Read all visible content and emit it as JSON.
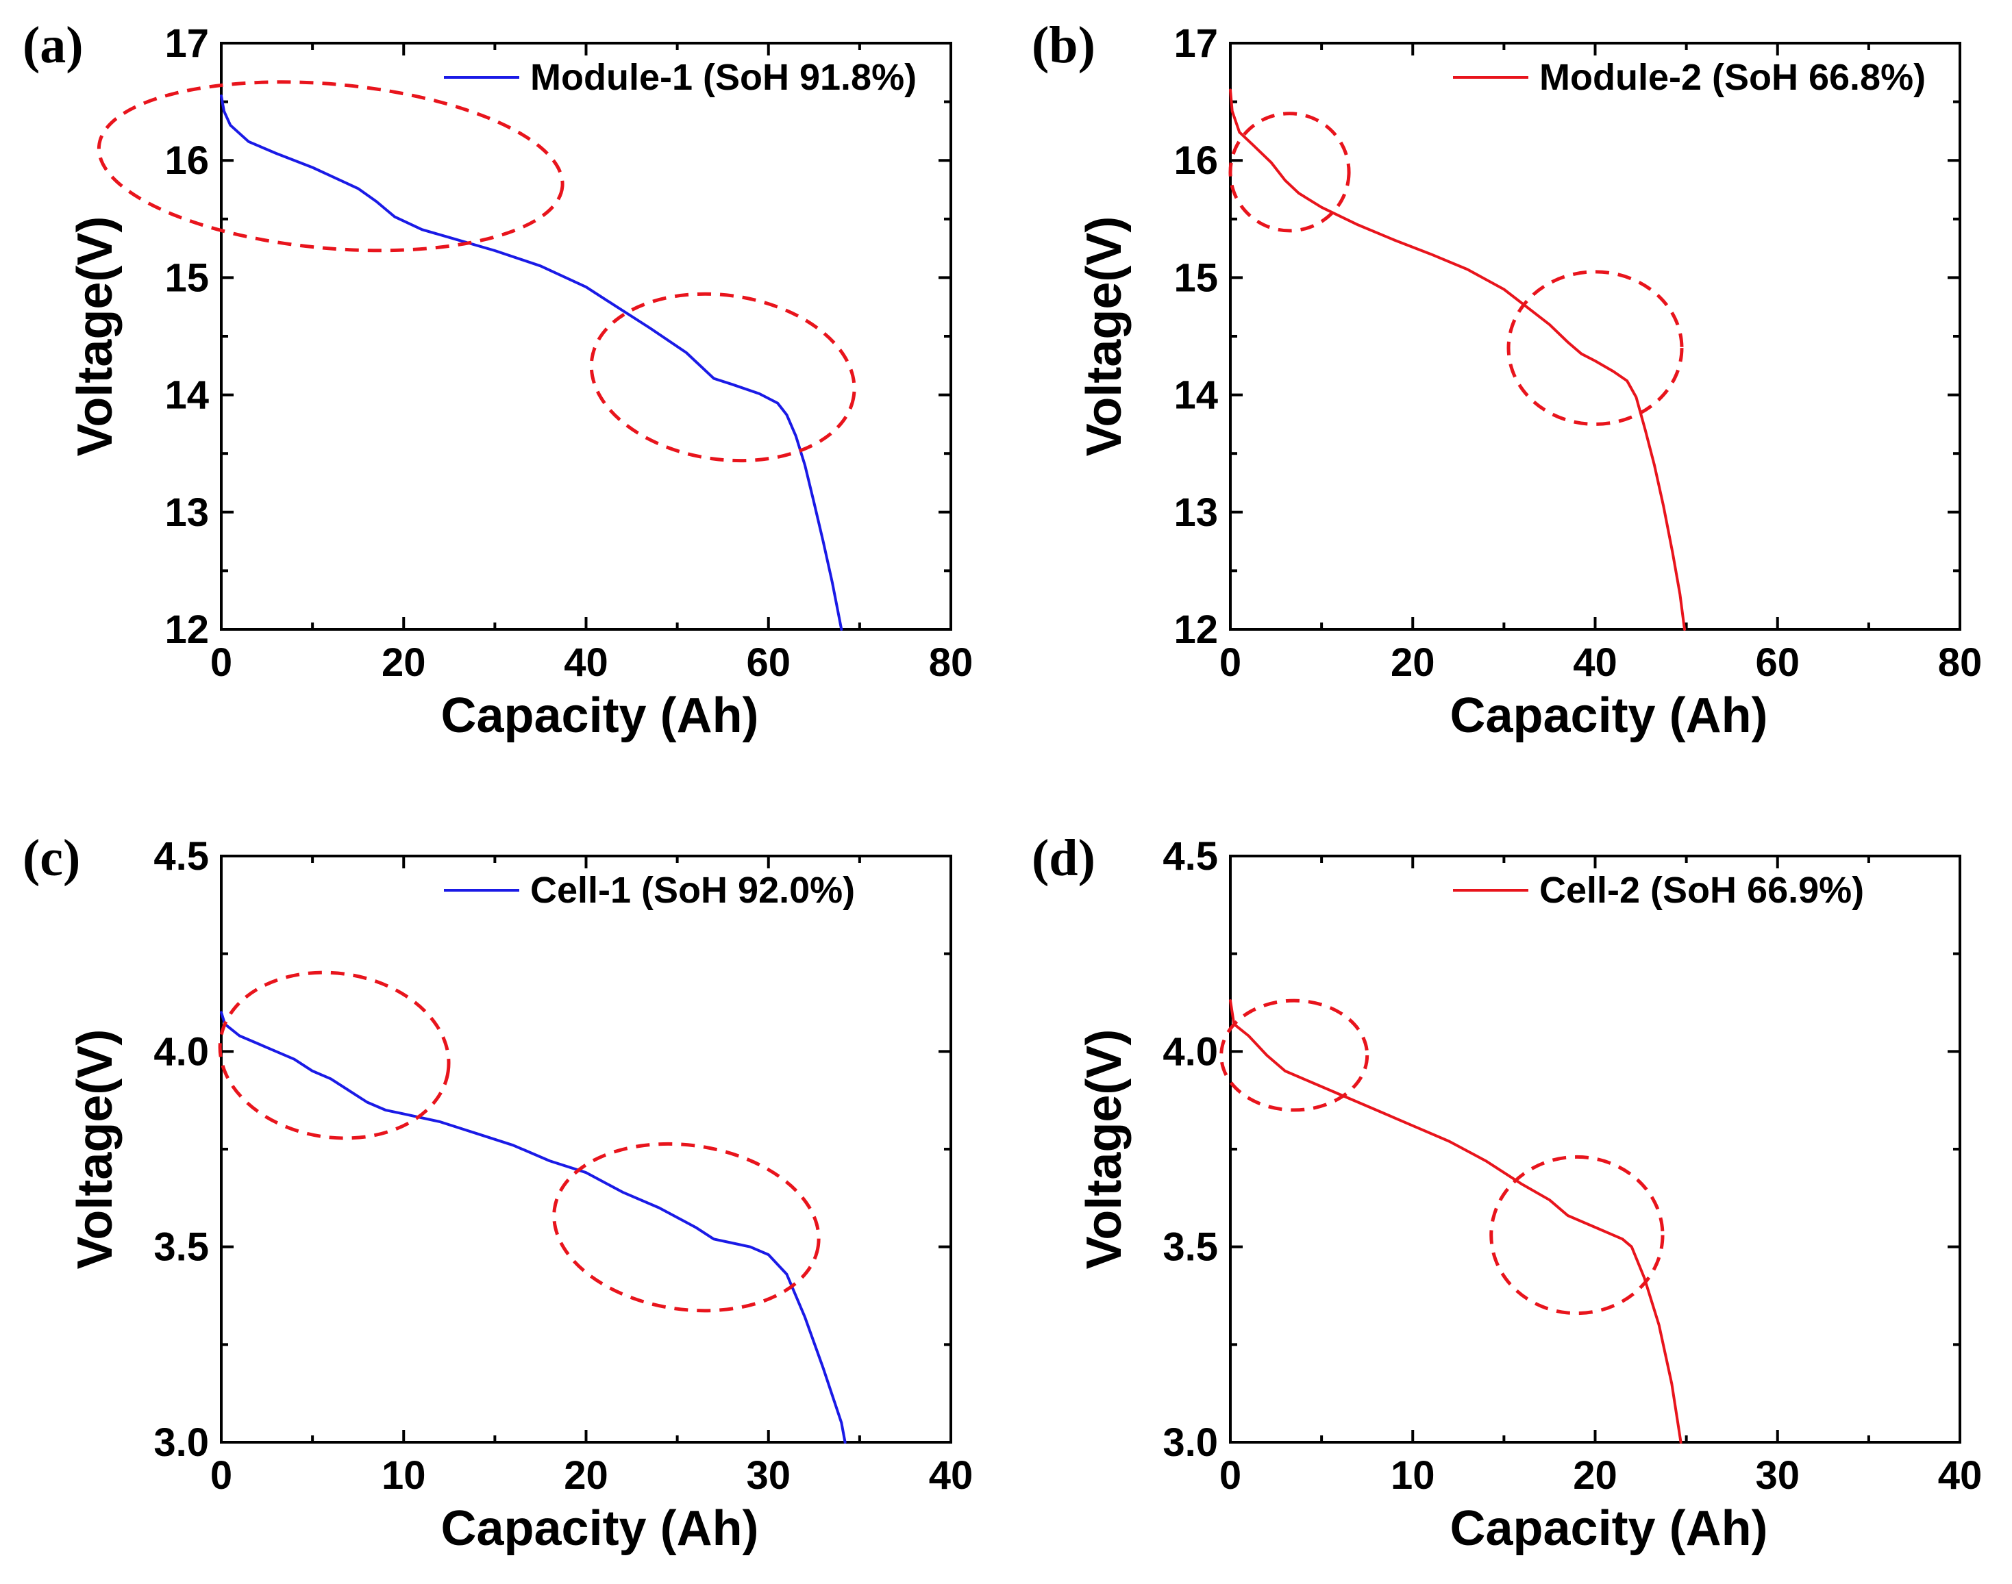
{
  "colors": {
    "blue": "#1a1ae6",
    "red": "#e8141c",
    "axis": "#000000"
  },
  "chart_data": [
    {
      "panel": "(a)",
      "type": "line",
      "xlabel": "Capacity (Ah)",
      "ylabel": "Voltage(V)",
      "xlim": [
        0,
        80
      ],
      "ylim": [
        12,
        17
      ],
      "xticks": [
        "0",
        "20",
        "40",
        "60",
        "80"
      ],
      "yticks": [
        "12",
        "13",
        "14",
        "15",
        "16",
        "17"
      ],
      "x_minor_step": 10,
      "y_minor_step": 0.5,
      "legend": "top-right",
      "series": [
        {
          "name": "Module-1 (SoH 91.8%)",
          "color": "#1a1ae6",
          "points": [
            [
              0,
              16.55
            ],
            [
              0.3,
              16.42
            ],
            [
              1,
              16.3
            ],
            [
              3,
              16.16
            ],
            [
              6,
              16.06
            ],
            [
              10,
              15.94
            ],
            [
              15,
              15.76
            ],
            [
              17,
              15.65
            ],
            [
              19,
              15.52
            ],
            [
              22,
              15.41
            ],
            [
              26,
              15.32
            ],
            [
              30,
              15.23
            ],
            [
              35,
              15.1
            ],
            [
              40,
              14.92
            ],
            [
              43,
              14.77
            ],
            [
              47,
              14.57
            ],
            [
              51,
              14.36
            ],
            [
              54,
              14.14
            ],
            [
              56,
              14.09
            ],
            [
              59,
              14.01
            ],
            [
              61,
              13.93
            ],
            [
              62,
              13.83
            ],
            [
              63,
              13.65
            ],
            [
              64,
              13.4
            ],
            [
              65,
              13.08
            ],
            [
              66,
              12.75
            ],
            [
              67,
              12.4
            ],
            [
              68,
              12.0
            ]
          ]
        }
      ],
      "regions": [
        {
          "cx": 12,
          "cy": 15.95,
          "rx": 25.5,
          "ry": 0.7,
          "rotate_deg": 5
        },
        {
          "cx": 55,
          "cy": 14.15,
          "rx": 14.5,
          "ry": 0.7,
          "rotate_deg": 8
        }
      ]
    },
    {
      "panel": "(b)",
      "type": "line",
      "xlabel": "Capacity (Ah)",
      "ylabel": "Voltage(V)",
      "xlim": [
        0,
        80
      ],
      "ylim": [
        12,
        17
      ],
      "xticks": [
        "0",
        "20",
        "40",
        "60",
        "80"
      ],
      "yticks": [
        "12",
        "13",
        "14",
        "15",
        "16",
        "17"
      ],
      "x_minor_step": 10,
      "y_minor_step": 0.5,
      "legend": "top-right",
      "series": [
        {
          "name": "Module-2 (SoH 66.8%)",
          "color": "#e8141c",
          "points": [
            [
              0,
              16.6
            ],
            [
              0.2,
              16.42
            ],
            [
              1,
              16.24
            ],
            [
              2.5,
              16.13
            ],
            [
              4.5,
              15.98
            ],
            [
              6,
              15.83
            ],
            [
              7.5,
              15.72
            ],
            [
              10,
              15.6
            ],
            [
              14,
              15.45
            ],
            [
              18,
              15.32
            ],
            [
              22,
              15.2
            ],
            [
              26,
              15.07
            ],
            [
              30,
              14.9
            ],
            [
              33,
              14.72
            ],
            [
              35,
              14.6
            ],
            [
              37,
              14.45
            ],
            [
              38.5,
              14.35
            ],
            [
              40,
              14.29
            ],
            [
              42,
              14.2
            ],
            [
              43.5,
              14.12
            ],
            [
              44.5,
              13.98
            ],
            [
              45.5,
              13.7
            ],
            [
              46.5,
              13.4
            ],
            [
              47.5,
              13.05
            ],
            [
              48.5,
              12.65
            ],
            [
              49.3,
              12.3
            ],
            [
              49.8,
              12.0
            ]
          ]
        }
      ],
      "regions": [
        {
          "cx": 6.5,
          "cy": 15.9,
          "rx": 6.5,
          "ry": 0.5,
          "rotate_deg": 0
        },
        {
          "cx": 40,
          "cy": 14.4,
          "rx": 9.5,
          "ry": 0.65,
          "rotate_deg": 0
        }
      ]
    },
    {
      "panel": "(c)",
      "type": "line",
      "xlabel": "Capacity (Ah)",
      "ylabel": "Voltage(V)",
      "xlim": [
        0,
        40
      ],
      "ylim": [
        3.0,
        4.5
      ],
      "xticks": [
        "0",
        "10",
        "20",
        "30",
        "40"
      ],
      "yticks": [
        "3.0",
        "3.5",
        "4.0",
        "4.5"
      ],
      "x_minor_step": 5,
      "y_minor_step": 0.25,
      "legend": "top-right",
      "series": [
        {
          "name": "Cell-1 (SoH 92.0%)",
          "color": "#1a1ae6",
          "points": [
            [
              0,
              4.1
            ],
            [
              0.2,
              4.07
            ],
            [
              1,
              4.04
            ],
            [
              2,
              4.02
            ],
            [
              3,
              4.0
            ],
            [
              4,
              3.98
            ],
            [
              5,
              3.95
            ],
            [
              6,
              3.93
            ],
            [
              7,
              3.9
            ],
            [
              8,
              3.87
            ],
            [
              9,
              3.85
            ],
            [
              10,
              3.84
            ],
            [
              12,
              3.82
            ],
            [
              14,
              3.79
            ],
            [
              16,
              3.76
            ],
            [
              18,
              3.72
            ],
            [
              20,
              3.69
            ],
            [
              22,
              3.64
            ],
            [
              24,
              3.6
            ],
            [
              26,
              3.55
            ],
            [
              27,
              3.52
            ],
            [
              28,
              3.51
            ],
            [
              29,
              3.5
            ],
            [
              30,
              3.48
            ],
            [
              31,
              3.43
            ],
            [
              32,
              3.32
            ],
            [
              33,
              3.19
            ],
            [
              34,
              3.05
            ],
            [
              34.2,
              3.0
            ]
          ]
        }
      ],
      "regions": [
        {
          "cx": 6.2,
          "cy": 3.99,
          "rx": 6.3,
          "ry": 0.21,
          "rotate_deg": 8
        },
        {
          "cx": 25.5,
          "cy": 3.55,
          "rx": 7.3,
          "ry": 0.21,
          "rotate_deg": 8
        }
      ]
    },
    {
      "panel": "(d)",
      "type": "line",
      "xlabel": "Capacity (Ah)",
      "ylabel": "Voltage(V)",
      "xlim": [
        0,
        40
      ],
      "ylim": [
        3.0,
        4.5
      ],
      "xticks": [
        "0",
        "10",
        "20",
        "30",
        "40"
      ],
      "yticks": [
        "3.0",
        "3.5",
        "4.0",
        "4.5"
      ],
      "x_minor_step": 5,
      "y_minor_step": 0.25,
      "legend": "top-right",
      "series": [
        {
          "name": "Cell-2 (SoH 66.9%)",
          "color": "#e8141c",
          "points": [
            [
              0,
              4.13
            ],
            [
              0.2,
              4.07
            ],
            [
              1,
              4.04
            ],
            [
              2,
              3.99
            ],
            [
              3,
              3.95
            ],
            [
              4.5,
              3.92
            ],
            [
              6,
              3.89
            ],
            [
              8,
              3.85
            ],
            [
              10,
              3.81
            ],
            [
              12,
              3.77
            ],
            [
              14,
              3.72
            ],
            [
              16,
              3.66
            ],
            [
              17.5,
              3.62
            ],
            [
              18.5,
              3.58
            ],
            [
              20,
              3.55
            ],
            [
              21.5,
              3.52
            ],
            [
              22,
              3.5
            ],
            [
              22.7,
              3.42
            ],
            [
              23.5,
              3.3
            ],
            [
              24.2,
              3.15
            ],
            [
              24.7,
              3.0
            ]
          ]
        }
      ],
      "regions": [
        {
          "cx": 3.5,
          "cy": 3.99,
          "rx": 4.0,
          "ry": 0.14,
          "rotate_deg": 0
        },
        {
          "cx": 19,
          "cy": 3.53,
          "rx": 4.7,
          "ry": 0.2,
          "rotate_deg": 0
        }
      ]
    }
  ]
}
